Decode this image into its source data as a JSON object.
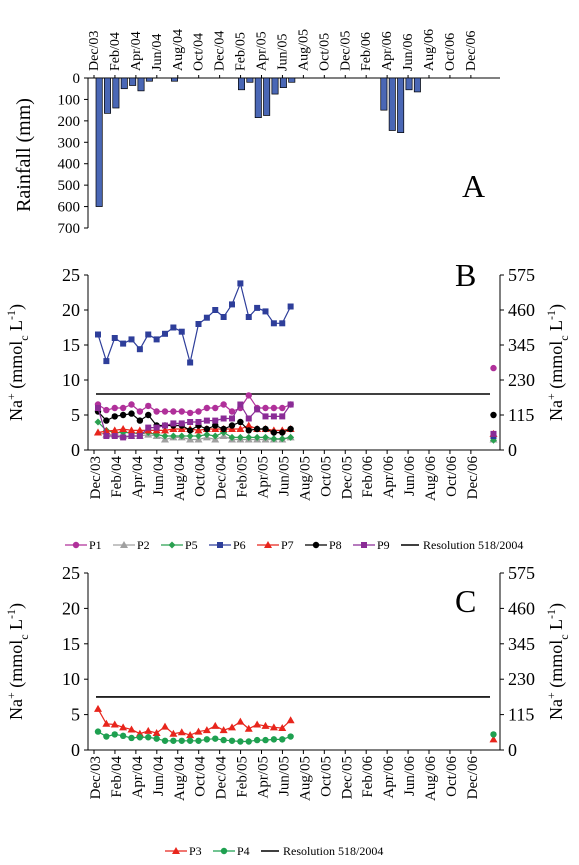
{
  "chart_data": [
    {
      "type": "bar",
      "panel_label": "A",
      "ylabel": "Rainfall (mm)",
      "ylim": [
        0,
        700
      ],
      "y_ticks": [
        "0",
        "100",
        "200",
        "300",
        "400",
        "500",
        "600",
        "700"
      ],
      "y_inverted": true,
      "x_ticks": [
        "Dec/03",
        "Feb/04",
        "Apr/04",
        "Jun/04",
        "Aug/04",
        "Oct/04",
        "Dec/04",
        "Feb/05",
        "Apr/05",
        "Jun/05",
        "Aug/05",
        "Oct/05",
        "Dec/05",
        "Feb/06",
        "Apr/06",
        "Jun/06",
        "Aug/06",
        "Oct/06",
        "Dec/06"
      ],
      "bar_color": "#4a67b5",
      "values": [
        600,
        165,
        140,
        50,
        35,
        60,
        15,
        0,
        0,
        15,
        0,
        0,
        0,
        0,
        0,
        0,
        0,
        55,
        20,
        185,
        175,
        75,
        45,
        20,
        0,
        0,
        0,
        0,
        0,
        0,
        0,
        0,
        0,
        0,
        150,
        245,
        255,
        55,
        65,
        0,
        0,
        0,
        0,
        0,
        0,
        0,
        0,
        0
      ]
    },
    {
      "type": "line",
      "panel_label": "B",
      "ylabel_left_main": "Na",
      "ylabel_left_sup": "+",
      "ylabel_left_rest": " (mmol",
      "ylabel_left_sub": "c",
      "ylabel_left_tail": " L",
      "ylabel_left_sup2": "-1",
      "ylabel_left_close": ")",
      "ylim": [
        0,
        25
      ],
      "y_ticks": [
        "0",
        "5",
        "10",
        "15",
        "20",
        "25"
      ],
      "y2_ticks": [
        "0",
        "115",
        "230",
        "345",
        "460",
        "575"
      ],
      "x_ticks": [
        "Dec/03",
        "Feb/04",
        "Apr/04",
        "Jun/04",
        "Aug/04",
        "Oct/04",
        "Dec/04",
        "Feb/05",
        "Apr/05",
        "Jun/05",
        "Aug/05",
        "Oct/05",
        "Dec/05",
        "Feb/06",
        "Apr/06",
        "Jun/06",
        "Aug/06",
        "Oct/06",
        "Dec/06"
      ],
      "reference_line": {
        "name": "Resolution 518/2004",
        "value": 8
      },
      "series": [
        {
          "name": "P1",
          "color": "#b0309a",
          "marker": "circle",
          "values": [
            6.5,
            5.7,
            6.0,
            6.0,
            6.5,
            5.5,
            6.3,
            5.5,
            5.5,
            5.5,
            5.5,
            5.3,
            5.5,
            6.0,
            6.0,
            6.5,
            5.5,
            6.0,
            7.8,
            6.0,
            6.0,
            6.0,
            6.0,
            6.5
          ],
          "extra": 11.7
        },
        {
          "name": "P2",
          "color": "#a0a0a0",
          "marker": "triangle",
          "values": [
            2.5,
            2.2,
            2.2,
            2.0,
            2.0,
            2.0,
            2.2,
            2.0,
            1.5,
            1.8,
            1.8,
            1.5,
            1.5,
            1.8,
            1.5,
            2.0,
            1.5,
            1.5,
            1.5,
            1.5,
            1.5,
            1.5,
            1.5,
            1.8
          ],
          "extra": 1.5
        },
        {
          "name": "P5",
          "color": "#2aa050",
          "marker": "diamond",
          "values": [
            4.0,
            2.8,
            2.5,
            2.5,
            2.5,
            2.3,
            2.5,
            2.2,
            2.0,
            2.0,
            2.0,
            2.0,
            2.0,
            2.2,
            2.0,
            2.5,
            1.8,
            1.8,
            1.8,
            1.8,
            1.8,
            1.6,
            1.6,
            1.8
          ],
          "extra": 1.4
        },
        {
          "name": "P6",
          "color": "#2e3e9a",
          "marker": "square",
          "values": [
            16.5,
            12.7,
            16.0,
            15.2,
            15.8,
            14.4,
            16.5,
            15.8,
            16.6,
            17.5,
            16.9,
            12.5,
            18.0,
            18.9,
            20.0,
            19.0,
            20.8,
            23.8,
            19.0,
            20.3,
            19.8,
            18.1,
            18.1,
            20.5
          ],
          "extra": 2.0
        },
        {
          "name": "P7",
          "color": "#e8251c",
          "marker": "triangle",
          "values": [
            2.5,
            2.7,
            2.8,
            3.0,
            2.8,
            2.8,
            2.8,
            2.8,
            2.8,
            3.0,
            3.0,
            3.0,
            2.8,
            3.0,
            3.0,
            3.0,
            3.0,
            3.0,
            3.5,
            3.0,
            3.0,
            2.8,
            2.8,
            3.0
          ],
          "extra": 2.3
        },
        {
          "name": "P8",
          "color": "#000000",
          "marker": "circle",
          "values": [
            5.5,
            4.2,
            4.8,
            5.0,
            5.2,
            4.2,
            5.0,
            3.5,
            3.5,
            3.5,
            3.5,
            2.8,
            3.5,
            3.0,
            3.5,
            3.0,
            3.5,
            4.0,
            2.8,
            3.0,
            3.0,
            2.5,
            2.5,
            3.0
          ],
          "extra": 5.0
        },
        {
          "name": "P9",
          "color": "#8a2c96",
          "marker": "square",
          "values": [
            6.0,
            2.0,
            2.0,
            1.8,
            2.0,
            2.0,
            3.2,
            3.2,
            3.5,
            3.8,
            3.8,
            4.0,
            4.0,
            4.2,
            4.2,
            4.5,
            4.5,
            6.5,
            4.5,
            5.8,
            4.8,
            4.8,
            4.8,
            6.5
          ],
          "extra": 2.3
        }
      ]
    },
    {
      "type": "line",
      "panel_label": "C",
      "ylim": [
        0,
        25
      ],
      "y_ticks": [
        "0",
        "5",
        "10",
        "15",
        "20",
        "25"
      ],
      "y2_ticks": [
        "0",
        "115",
        "230",
        "345",
        "460",
        "575"
      ],
      "x_ticks": [
        "Dec/03",
        "Feb/04",
        "Apr/04",
        "Jun/04",
        "Aug/04",
        "Oct/04",
        "Dec/04",
        "Feb/05",
        "Apr/05",
        "Jun/05",
        "Aug/05",
        "Oct/05",
        "Dec/05",
        "Feb/06",
        "Apr/06",
        "Jun/06",
        "Aug/06",
        "Oct/06",
        "Dec/06"
      ],
      "reference_line": {
        "name": "Resolution 518/2004",
        "value": 7.5
      },
      "series": [
        {
          "name": "P3",
          "color": "#e8251c",
          "marker": "triangle",
          "values": [
            5.8,
            3.7,
            3.6,
            3.2,
            2.9,
            2.3,
            2.7,
            2.4,
            3.3,
            2.3,
            2.5,
            2.1,
            2.6,
            2.8,
            3.4,
            2.8,
            3.2,
            4.0,
            3.0,
            3.6,
            3.4,
            3.2,
            3.1,
            4.2
          ],
          "extra": 1.5
        },
        {
          "name": "P4",
          "color": "#1ea050",
          "marker": "circle",
          "values": [
            2.6,
            1.9,
            2.2,
            2.0,
            1.7,
            1.8,
            1.8,
            1.6,
            1.3,
            1.3,
            1.3,
            1.3,
            1.3,
            1.5,
            1.6,
            1.4,
            1.3,
            1.2,
            1.2,
            1.4,
            1.4,
            1.5,
            1.5,
            1.9
          ],
          "extra": 2.2
        }
      ]
    }
  ],
  "legend_b": [
    "P1",
    "P2",
    "P5",
    "P6",
    "P7",
    "P8",
    "P9",
    "Resolution 518/2004"
  ],
  "legend_c": [
    "P3",
    "P4",
    "Resolution 518/2004"
  ]
}
